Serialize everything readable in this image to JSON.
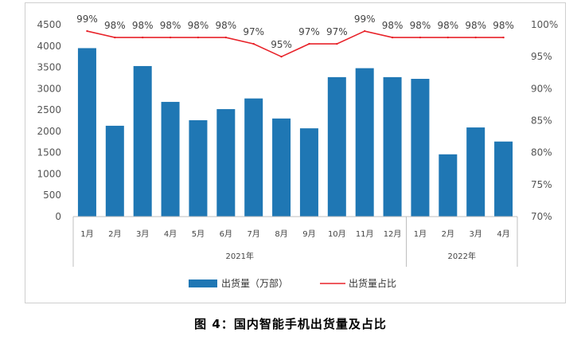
{
  "caption": "图 4：国内智能手机出货量及占比",
  "chart_data": {
    "type": "bar",
    "title": "",
    "categories": [
      "1月",
      "2月",
      "3月",
      "4月",
      "5月",
      "6月",
      "7月",
      "8月",
      "9月",
      "10月",
      "11月",
      "12月",
      "1月",
      "2月",
      "3月",
      "4月"
    ],
    "groups": [
      {
        "label": "2021年",
        "count": 12
      },
      {
        "label": "2022年",
        "count": 4
      }
    ],
    "series": [
      {
        "name": "出货量（万部）",
        "type": "bar",
        "axis": "left",
        "color": "#1f77b4",
        "values": [
          3950,
          2130,
          3530,
          2690,
          2260,
          2520,
          2770,
          2300,
          2070,
          3270,
          3480,
          3270,
          3230,
          1460,
          2090,
          1760
        ]
      },
      {
        "name": "出货量占比",
        "type": "line",
        "axis": "right",
        "color": "#e8232a",
        "values": [
          99,
          98,
          98,
          98,
          98,
          98,
          97,
          95,
          97,
          97,
          99,
          98,
          98,
          98,
          98,
          98
        ]
      }
    ],
    "line_labels": [
      "99%",
      "98%",
      "98%",
      "98%",
      "98%",
      "98%",
      "97%",
      "95%",
      "97%",
      "97%",
      "99%",
      "98%",
      "98%",
      "98%",
      "98%",
      "98%"
    ],
    "y_left": {
      "min": 0,
      "max": 4500,
      "ticks": [
        "0",
        "500",
        "1000",
        "1500",
        "2000",
        "2500",
        "3000",
        "3500",
        "4000",
        "4500"
      ]
    },
    "y_right": {
      "min": 70,
      "max": 100,
      "ticks": [
        "70%",
        "75%",
        "80%",
        "85%",
        "90%",
        "95%",
        "100%"
      ]
    },
    "grid": false,
    "legend_position": "bottom"
  }
}
